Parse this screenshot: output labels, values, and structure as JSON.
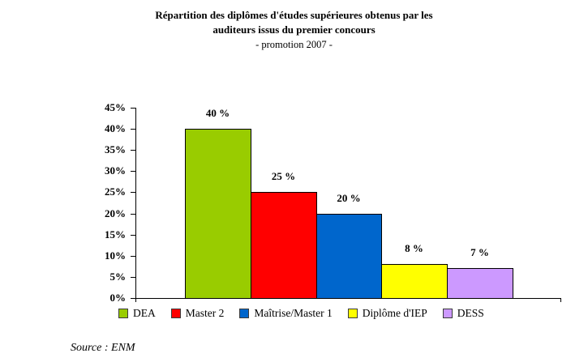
{
  "title": {
    "line1": "Répartition des diplômes d'études supérieures obtenus par les",
    "line2": "auditeurs issus du premier concours",
    "line3": "- promotion 2007 -"
  },
  "source": "Source : ENM",
  "chart_data": {
    "type": "bar",
    "title": "Répartition des diplômes d'études supérieures obtenus par les auditeurs issus du premier concours - promotion 2007 -",
    "categories": [
      "DEA",
      "Master 2",
      "Maîtrise/Master 1",
      "Diplôme d'IEP",
      "DESS"
    ],
    "values": [
      40,
      25,
      20,
      8,
      7
    ],
    "data_labels": [
      "40 %",
      "25 %",
      "20 %",
      "8 %",
      "7 %"
    ],
    "colors": [
      "#99CC00",
      "#FF0000",
      "#0066CC",
      "#FFFF00",
      "#CC99FF"
    ],
    "bar_border_color": "#000000",
    "xlabel": "",
    "ylabel": "",
    "y_axis": {
      "min": 0,
      "max": 45,
      "step": 5,
      "tick_labels": [
        "0%",
        "5%",
        "10%",
        "15%",
        "20%",
        "25%",
        "30%",
        "35%",
        "40%",
        "45%"
      ]
    },
    "grid": false,
    "legend_position": "bottom"
  }
}
